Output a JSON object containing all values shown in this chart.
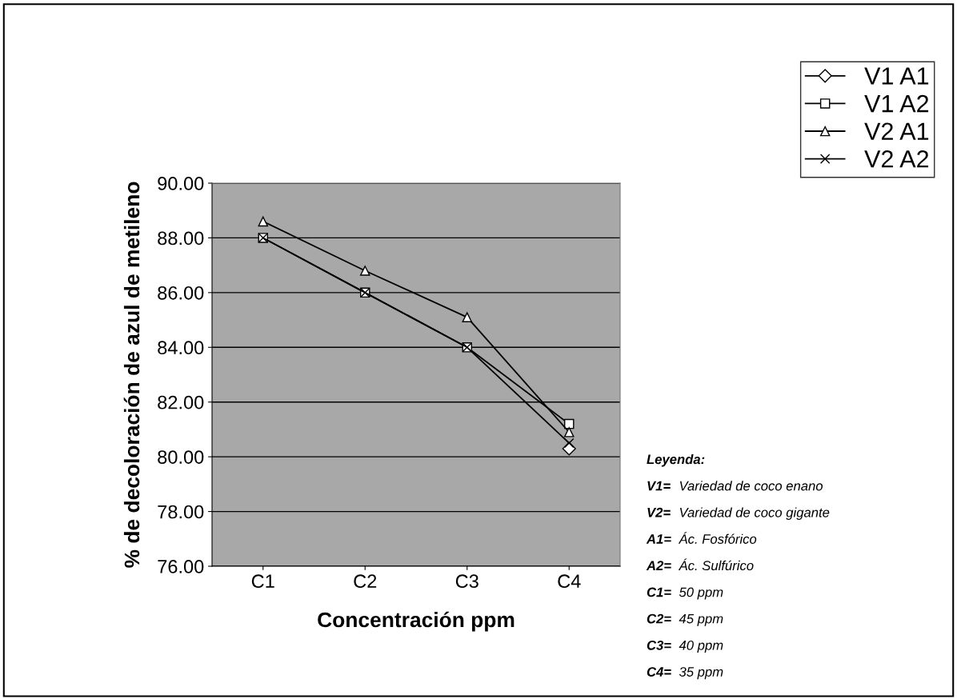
{
  "chart_data": {
    "type": "line",
    "xlabel": "Concentración ppm",
    "ylabel": "% de decoloración de azul de metileno",
    "categories": [
      "C1",
      "C2",
      "C3",
      "C4"
    ],
    "series": [
      {
        "name": "V1 A1",
        "color": "#000000",
        "marker": "diamond",
        "values": [
          null,
          null,
          null,
          80.3
        ]
      },
      {
        "name": "V1 A2",
        "color": "#000000",
        "marker": "square",
        "values": [
          88.0,
          86.0,
          84.0,
          81.2
        ]
      },
      {
        "name": "V2 A1",
        "color": "#000000",
        "marker": "triangle",
        "values": [
          88.6,
          86.8,
          85.1,
          80.9
        ]
      },
      {
        "name": "V2 A2",
        "color": "#000000",
        "marker": "cross",
        "values": [
          88.0,
          86.0,
          84.0,
          80.5
        ]
      }
    ],
    "ylim": [
      76,
      90
    ],
    "yticks": [
      {
        "value": 76,
        "label": "76.00"
      },
      {
        "value": 78,
        "label": "78.00"
      },
      {
        "value": 80,
        "label": "80.00"
      },
      {
        "value": 82,
        "label": "82.00"
      },
      {
        "value": 84,
        "label": "84.00"
      },
      {
        "value": 86,
        "label": "86.00"
      },
      {
        "value": 88,
        "label": "88.00"
      },
      {
        "value": 90,
        "label": "90.00"
      }
    ],
    "grid": "y",
    "legend": "top right",
    "annotations": [
      "Leyenda:",
      "V1= Variedad de coco enano",
      "V2= Variedad de coco gigante",
      "A1= Ác. Fosfórico",
      "A2= Ác. Sulfúrico",
      "C1= 50 ppm",
      "C2= 45 ppm",
      "C3= 40 ppm",
      "C4= 35 ppm"
    ]
  }
}
